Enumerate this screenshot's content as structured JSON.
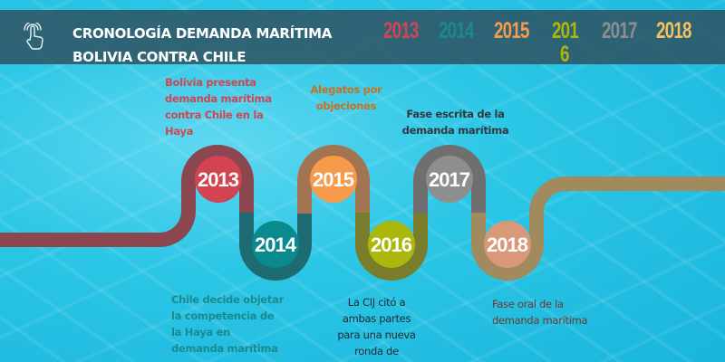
{
  "header": {
    "title_line1": "CRONOLOGÍA DEMANDA MARÍTIMA",
    "title_line2": "BOLIVIA CONTRA CHILE",
    "icon": "touch-hand-icon"
  },
  "legend_years": [
    {
      "label": "2013",
      "color": "#d2444f"
    },
    {
      "label": "2014",
      "color": "#1a8a8f"
    },
    {
      "label": "2015",
      "color": "#f79a4a"
    },
    {
      "label": "201",
      "label_wrap": "6",
      "color": "#abb70a"
    },
    {
      "label": "2017",
      "color": "#8e8e8e"
    },
    {
      "label": "2018",
      "color": "#f5c25d"
    }
  ],
  "timeline": [
    {
      "year": "2013",
      "color": "#d2444f",
      "note": "Bolivia presenta demanda marítima contra Chile en la Haya",
      "note_color": "#d2444f"
    },
    {
      "year": "2014",
      "color": "#088a8f",
      "note": "Chile decide objetar la competencia de la Haya en demanda marítima",
      "note_color": "#1a8a8f"
    },
    {
      "year": "2015",
      "color": "#f79a4a",
      "note": "Alegatos por objeciones",
      "note_color": "#c8701e"
    },
    {
      "year": "2016",
      "color": "#abb70a",
      "note": "La CIJ citó a ambas partes para una nueva ronda de",
      "note_color": "#1d2a30"
    },
    {
      "year": "2017",
      "color": "#8e8e8e",
      "note": "Fase escrita de la demanda marítima",
      "note_color": "#2f3a3e"
    },
    {
      "year": "2018",
      "color": "#d99878",
      "note": "Fase oral de la demanda marítima",
      "note_color": "#6b3a2a"
    }
  ]
}
